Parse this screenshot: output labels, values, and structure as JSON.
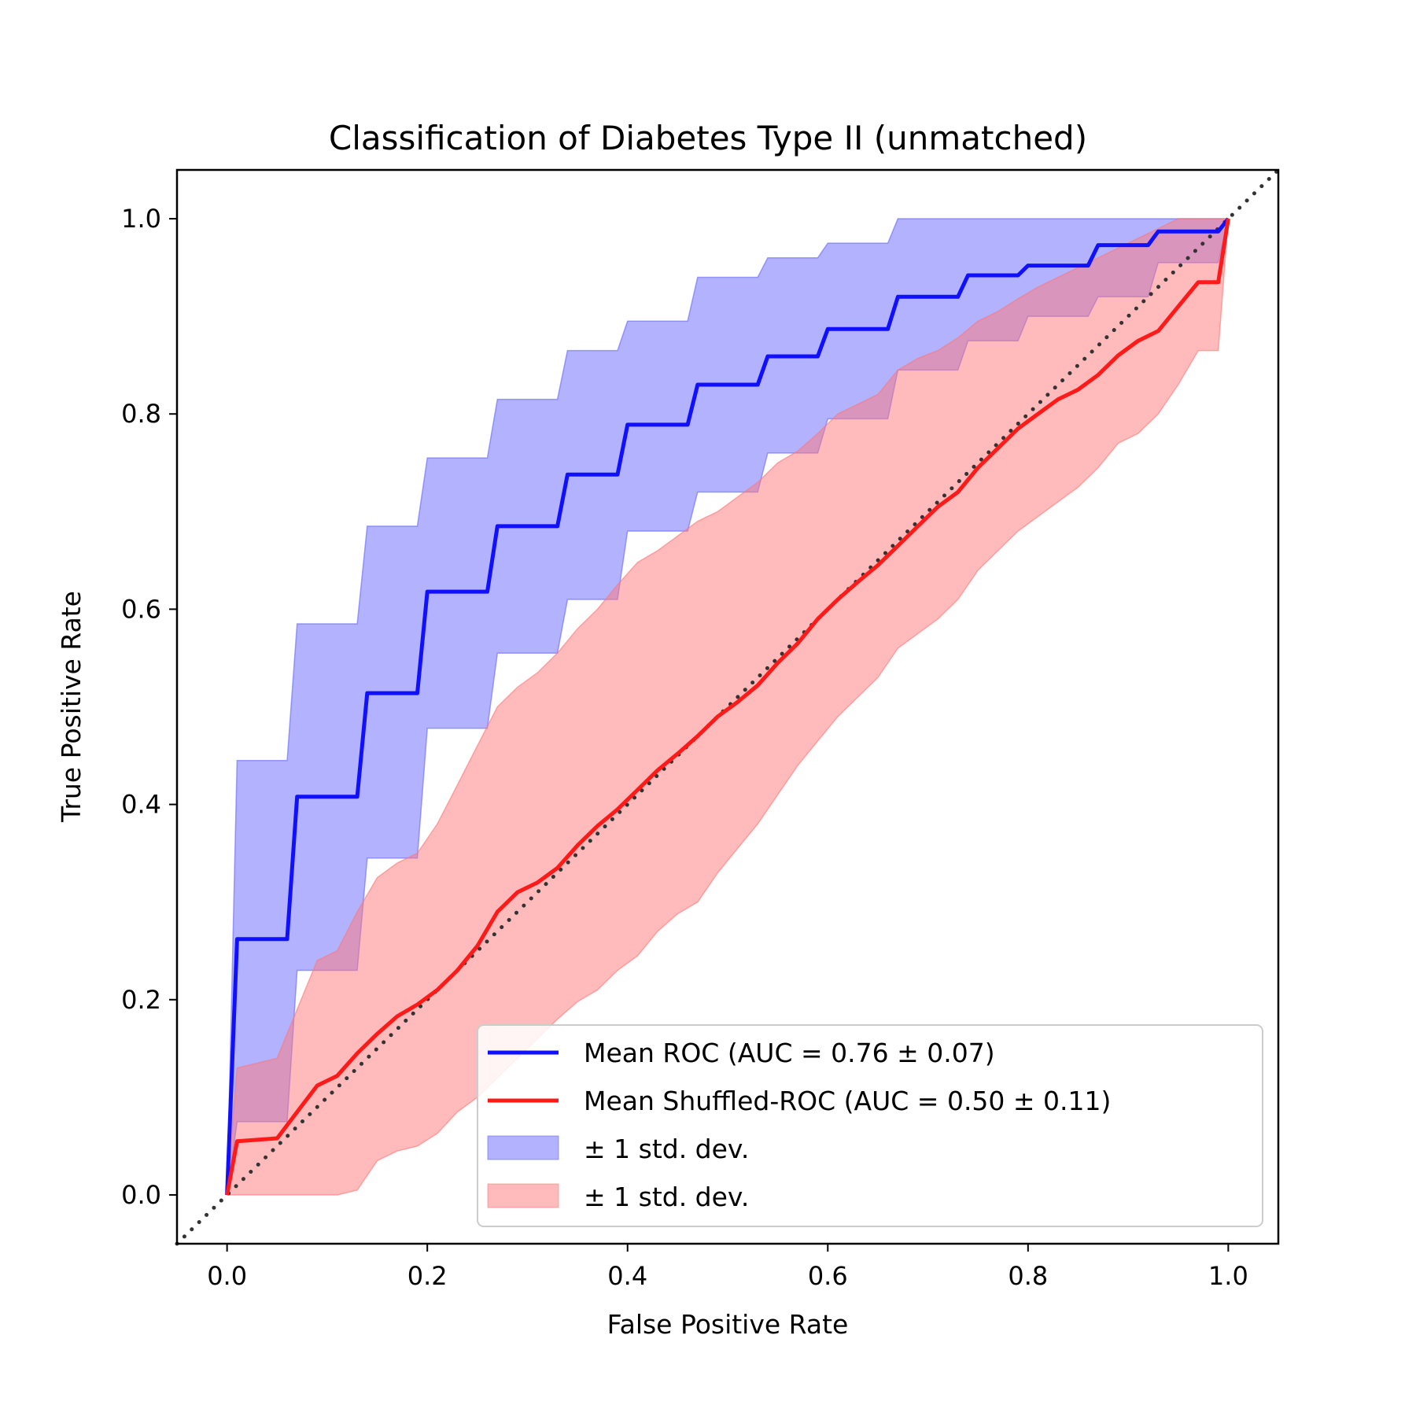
{
  "chart_data": {
    "type": "line",
    "title": "Classification of Diabetes Type II (unmatched)",
    "xlabel": "False Positive Rate",
    "ylabel": "True Positive Rate",
    "xlim": [
      -0.05,
      1.05
    ],
    "ylim": [
      -0.05,
      1.05
    ],
    "xticks": [
      "0.0",
      "0.2",
      "0.4",
      "0.6",
      "0.8",
      "1.0"
    ],
    "yticks": [
      "0.0",
      "0.2",
      "0.4",
      "0.6",
      "0.8",
      "1.0"
    ],
    "grid": false,
    "legend_placement": "lower-right",
    "chance_line": {
      "x": [
        -0.05,
        1.05
      ],
      "y": [
        -0.05,
        1.05
      ],
      "color": "#333333",
      "style": "dotted"
    },
    "series": [
      {
        "name": "Mean ROC (AUC = 0.76 ± 0.07)",
        "color": "#1010ff",
        "x": [
          0,
          0.01,
          0.06,
          0.07,
          0.13,
          0.14,
          0.19,
          0.2,
          0.26,
          0.27,
          0.33,
          0.34,
          0.39,
          0.4,
          0.46,
          0.47,
          0.53,
          0.54,
          0.59,
          0.6,
          0.66,
          0.67,
          0.73,
          0.74,
          0.79,
          0.8,
          0.86,
          0.87,
          0.92,
          0.93,
          0.99,
          1.0
        ],
        "y": [
          0,
          0.262,
          0.262,
          0.408,
          0.408,
          0.514,
          0.514,
          0.618,
          0.618,
          0.685,
          0.685,
          0.738,
          0.738,
          0.789,
          0.789,
          0.83,
          0.83,
          0.859,
          0.859,
          0.887,
          0.887,
          0.92,
          0.92,
          0.942,
          0.942,
          0.952,
          0.952,
          0.973,
          0.973,
          0.987,
          0.987,
          1.0
        ]
      },
      {
        "name": "Mean Shuffled-ROC (AUC = 0.50 ± 0.11)",
        "color": "#ff1a1a",
        "x": [
          0,
          0.01,
          0.05,
          0.07,
          0.09,
          0.11,
          0.13,
          0.15,
          0.17,
          0.19,
          0.21,
          0.23,
          0.25,
          0.27,
          0.29,
          0.31,
          0.33,
          0.35,
          0.37,
          0.39,
          0.41,
          0.43,
          0.45,
          0.47,
          0.49,
          0.51,
          0.53,
          0.55,
          0.57,
          0.59,
          0.61,
          0.63,
          0.65,
          0.67,
          0.69,
          0.71,
          0.73,
          0.75,
          0.77,
          0.79,
          0.81,
          0.83,
          0.85,
          0.87,
          0.89,
          0.91,
          0.93,
          0.95,
          0.97,
          0.99,
          1.0
        ],
        "y": [
          0,
          0.055,
          0.058,
          0.085,
          0.112,
          0.122,
          0.145,
          0.165,
          0.183,
          0.195,
          0.21,
          0.23,
          0.255,
          0.29,
          0.31,
          0.32,
          0.335,
          0.358,
          0.378,
          0.395,
          0.415,
          0.435,
          0.452,
          0.47,
          0.49,
          0.505,
          0.522,
          0.545,
          0.565,
          0.59,
          0.61,
          0.628,
          0.645,
          0.665,
          0.685,
          0.705,
          0.72,
          0.745,
          0.765,
          0.785,
          0.8,
          0.815,
          0.825,
          0.84,
          0.86,
          0.875,
          0.885,
          0.91,
          0.935,
          0.935,
          1.0
        ]
      }
    ],
    "bands": [
      {
        "name": "± 1 std. dev.",
        "color": "#6666ff",
        "x": [
          0,
          0.01,
          0.06,
          0.07,
          0.13,
          0.14,
          0.19,
          0.2,
          0.26,
          0.27,
          0.33,
          0.34,
          0.39,
          0.4,
          0.46,
          0.47,
          0.53,
          0.54,
          0.59,
          0.6,
          0.66,
          0.67,
          0.73,
          0.74,
          0.79,
          0.8,
          0.86,
          0.87,
          0.92,
          0.93,
          0.99,
          1.0
        ],
        "upper": [
          0,
          0.445,
          0.445,
          0.585,
          0.585,
          0.685,
          0.685,
          0.755,
          0.755,
          0.815,
          0.815,
          0.865,
          0.865,
          0.895,
          0.895,
          0.94,
          0.94,
          0.96,
          0.96,
          0.975,
          0.975,
          1.0,
          1.0,
          1.0,
          1.0,
          1.0,
          1.0,
          1.0,
          1.0,
          1.0,
          1.0,
          1.0
        ],
        "lower": [
          0,
          0.075,
          0.075,
          0.23,
          0.23,
          0.345,
          0.345,
          0.478,
          0.478,
          0.555,
          0.555,
          0.61,
          0.61,
          0.68,
          0.68,
          0.72,
          0.72,
          0.76,
          0.76,
          0.795,
          0.795,
          0.845,
          0.845,
          0.875,
          0.875,
          0.9,
          0.9,
          0.92,
          0.92,
          0.955,
          0.955,
          1.0
        ]
      },
      {
        "name": "± 1 std. dev.",
        "color": "#ff7777",
        "x": [
          0,
          0.01,
          0.05,
          0.07,
          0.09,
          0.11,
          0.13,
          0.15,
          0.17,
          0.19,
          0.21,
          0.23,
          0.25,
          0.27,
          0.29,
          0.31,
          0.33,
          0.35,
          0.37,
          0.39,
          0.41,
          0.43,
          0.45,
          0.47,
          0.49,
          0.51,
          0.53,
          0.55,
          0.57,
          0.59,
          0.61,
          0.63,
          0.65,
          0.67,
          0.69,
          0.71,
          0.73,
          0.75,
          0.77,
          0.79,
          0.81,
          0.83,
          0.85,
          0.87,
          0.89,
          0.91,
          0.93,
          0.95,
          0.97,
          0.99,
          1.0
        ],
        "upper": [
          0,
          0.13,
          0.14,
          0.19,
          0.24,
          0.25,
          0.29,
          0.325,
          0.34,
          0.35,
          0.38,
          0.42,
          0.46,
          0.5,
          0.52,
          0.535,
          0.555,
          0.58,
          0.6,
          0.625,
          0.648,
          0.66,
          0.675,
          0.69,
          0.7,
          0.715,
          0.73,
          0.75,
          0.762,
          0.78,
          0.8,
          0.81,
          0.82,
          0.845,
          0.857,
          0.865,
          0.878,
          0.895,
          0.905,
          0.918,
          0.93,
          0.94,
          0.95,
          0.96,
          0.97,
          0.98,
          0.99,
          1.0,
          1.0,
          1.0,
          1.0
        ],
        "lower": [
          0,
          0.0,
          0.0,
          0.0,
          0.0,
          0.0,
          0.005,
          0.035,
          0.045,
          0.05,
          0.063,
          0.085,
          0.1,
          0.12,
          0.14,
          0.16,
          0.18,
          0.198,
          0.21,
          0.23,
          0.245,
          0.27,
          0.288,
          0.3,
          0.33,
          0.355,
          0.38,
          0.41,
          0.44,
          0.465,
          0.49,
          0.51,
          0.53,
          0.56,
          0.575,
          0.59,
          0.61,
          0.64,
          0.66,
          0.68,
          0.695,
          0.71,
          0.725,
          0.745,
          0.77,
          0.78,
          0.8,
          0.83,
          0.865,
          0.865,
          1.0
        ]
      }
    ]
  }
}
